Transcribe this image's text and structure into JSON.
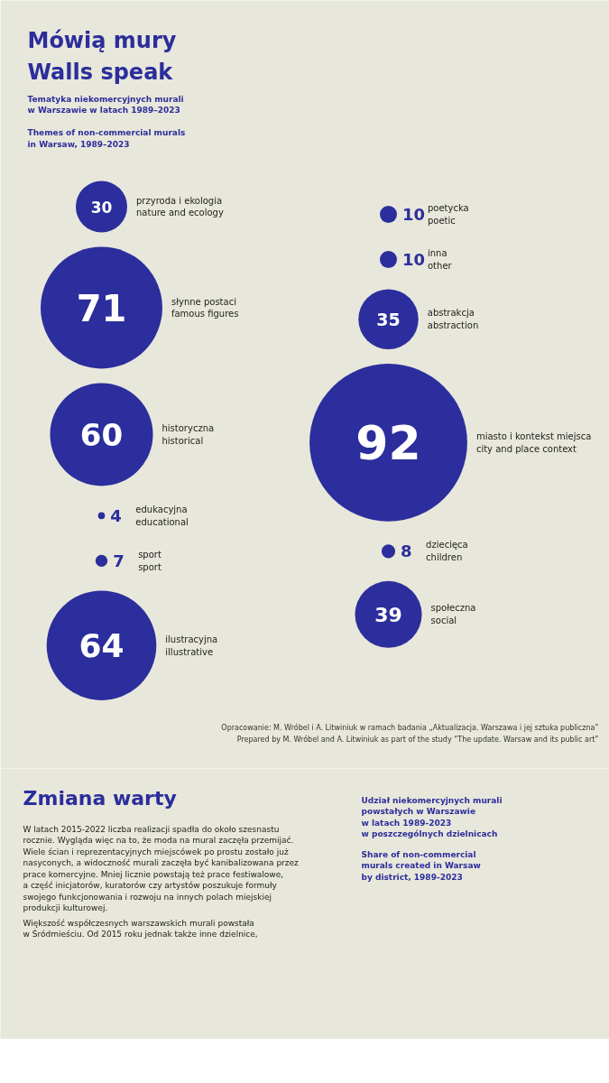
{
  "chart_data": [
    {
      "type": "other",
      "title": "Mówią mury\nWalls speak",
      "subtitle": "Tematyka niekomercyjnych murali\nw Warszawie w latach 1989–2023\n\nThemes of non-commercial murals\nin Warsaw, 1989–2023",
      "categories": [
        "przyroda i ekologia\nnature and ecology",
        "poetycka\npoetic",
        "inna\nother",
        "słynne postaci\nfamous figures",
        "abstrakcja\nabstraction",
        "miasto i kontekst miejsca\ncity and place context",
        "historyczna\nhistorical",
        "edukacyjna\neducational",
        "dziecięca\nchildren",
        "sport\nsport",
        "społeczna\nsocial",
        "ilustracyjna\nillustrative"
      ],
      "values": [
        30,
        10,
        10,
        71,
        35,
        92,
        60,
        4,
        8,
        7,
        39,
        64
      ],
      "color": "#2b2e9c",
      "data_labels": true,
      "annotations": [
        "Opracowanie: M. Wróbel i A. Litwiniuk w ramach badania „Aktualizacja. Warszawa i jej sztuka publiczna”",
        "Prepared by M. Wróbel and A. Litwiniuk as part of the study “The update. Warsaw and its public art”"
      ]
    },
    {
      "type": "other",
      "title": "Zmiana warty",
      "annotations": [
        "W latach 2015-2022 liczba realizacji spadła do około szesnastu\nrocznie. Wygląda więc na to, że moda na mural zaczęła przemijać.\nWiele ścian i reprezentacyjnych miejscówek po prostu zostało już\nnasyconych, a widoczność murali zaczęła być kanibalizowana przez\nprace komercyjne. Mniej licznie powstają też prace festiwalowe,\na część inicjatorów, kuratorów czy artystów poszukuje formuły\nswojego funkcjonowania i rozwoju na innych polach miejskiej\nprodukcji kulturowej.",
        "Większość współczesnych warszawskich murali powstała\nw Śródmieściu. Od 2015 roku jednak także inne dzielnice,",
        "Udział niekomercyjnych murali\npowstałych w Warszawie\nw latach 1989-2023\nw poszczególnych dzielnicach",
        "Share of non-commercial\nmurals created in Warsaw\nby district, 1989-2023"
      ]
    }
  ]
}
